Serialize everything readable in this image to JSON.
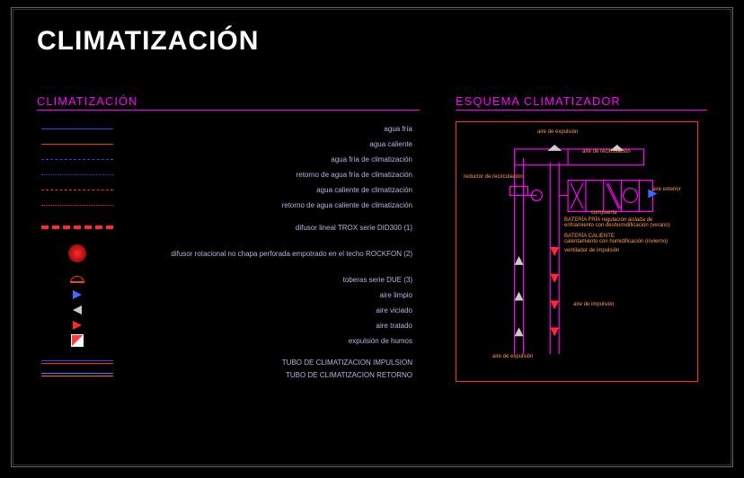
{
  "title": "CLIMATIZACIÓN",
  "legend": {
    "heading": "CLIMATIZACIÓN",
    "items": [
      {
        "label": "agua fría",
        "type": "line",
        "style": "solid",
        "color": "#2a4af0"
      },
      {
        "label": "agua caliente",
        "type": "line",
        "style": "solid",
        "color": "#ff2a2a"
      },
      {
        "label": "agua fría de climatización",
        "type": "line",
        "style": "dashed",
        "color": "#2a4af0"
      },
      {
        "label": "retorno de agua fría de climatización",
        "type": "line",
        "style": "dotted",
        "color": "#2a4af0"
      },
      {
        "label": "agua caliente de climatización",
        "type": "line",
        "style": "dashed",
        "color": "#ff2a2a"
      },
      {
        "label": "retorno de agua caliente de climatización",
        "type": "line",
        "style": "dotted",
        "color": "#ff2a2a"
      },
      {
        "label": "difusor lineal TROX serie DID300 (1)",
        "type": "bar",
        "color": "#ff2a2a"
      },
      {
        "label": "difusor rotacional no chapa perforada empotrado en el techo ROCKFON (2)",
        "type": "circle"
      },
      {
        "label": "toberas serie DUE (3)",
        "type": "dome"
      },
      {
        "label": "aire limpio",
        "type": "arrow",
        "dir": "right",
        "color": "#3a6aff"
      },
      {
        "label": "aire viciado",
        "type": "arrow",
        "dir": "left",
        "color": "#cccccc"
      },
      {
        "label": "aire tratado",
        "type": "arrow",
        "dir": "right",
        "color": "#ff2a2a"
      },
      {
        "label": "expulsión de humos",
        "type": "flag"
      }
    ],
    "tubes": {
      "impulsion": {
        "label": "TUBO DE CLIMATIZACION IMPULSION",
        "colors": [
          "#2a4af0",
          "#ff2a2a"
        ]
      },
      "retorno": {
        "label": "TUBO DE CLIMATIZACION RETORNO",
        "colors": [
          "#4a7aff",
          "#ff5a5a"
        ]
      }
    }
  },
  "schematic": {
    "heading": "ESQUEMA CLIMATIZADOR",
    "colors": {
      "main": "#ff00ff",
      "annot": "#ff9a4a",
      "air_in": "#3a6aff",
      "air_out": "#cccccc",
      "air_treated": "#ff2a2a",
      "frame": "#ff3030"
    },
    "labels": {
      "top1": "aire de expulsión",
      "top2": "aire de recirculación",
      "left1": "reductor de recirculación",
      "right1": "aire exterior",
      "mid1": "compuerta",
      "mid2": "BATERÍA FRÍA regulación aislada de enfriamiento con deshumidificación (verano)",
      "mid3": "BATERÍA CALIENTE",
      "mid4": "calentamiento con humidificación (invierno)",
      "mid5": "ventilador de impulsión",
      "bottom1": "aire de impulsión",
      "bottomleft": "aire de expulsión"
    }
  }
}
